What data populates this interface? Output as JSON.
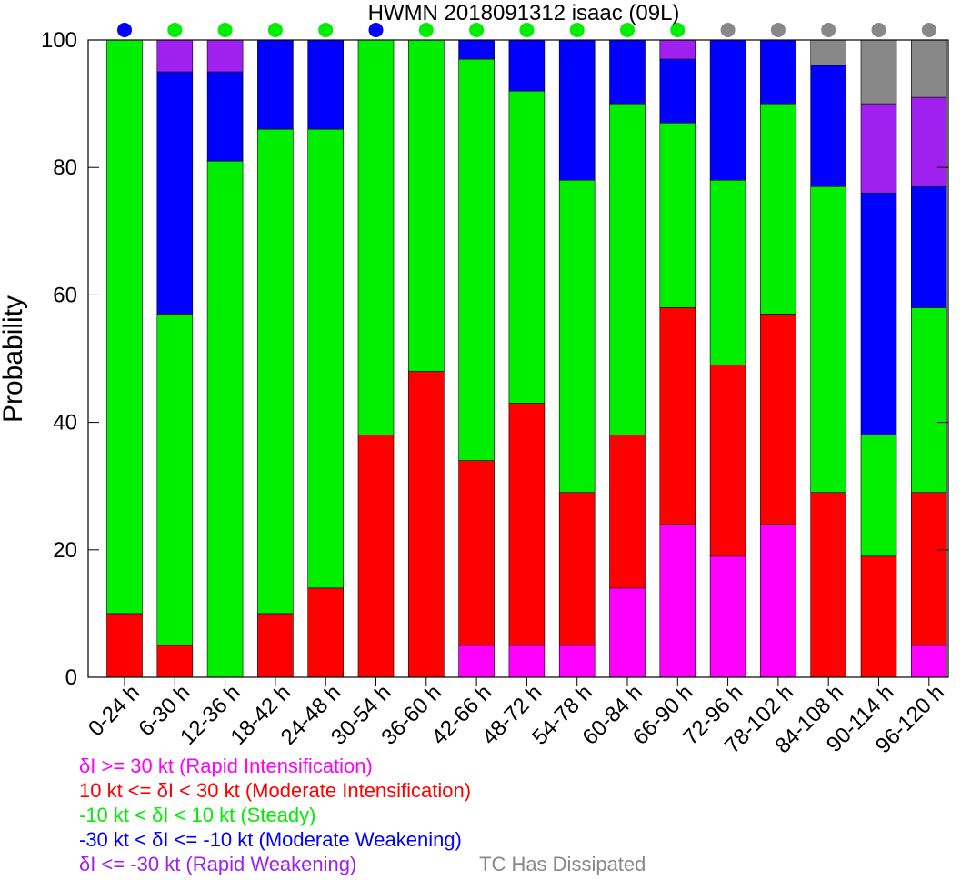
{
  "chart_data": {
    "type": "bar",
    "stacked": true,
    "title": "HWMN 2018091312 isaac (09L)",
    "ylabel": "Probability",
    "xlabel": "",
    "ylim": [
      0,
      100
    ],
    "yticks": [
      "0",
      "20",
      "40",
      "60",
      "80",
      "100"
    ],
    "categories": [
      "0-24 h",
      "6-30 h",
      "12-36 h",
      "18-42 h",
      "24-48 h",
      "30-54 h",
      "36-60 h",
      "42-66 h",
      "48-72 h",
      "54-78 h",
      "60-84 h",
      "66-90 h",
      "72-96 h",
      "78-102 h",
      "84-108 h",
      "90-114 h",
      "96-120 h"
    ],
    "series": [
      {
        "name": "δI >= 30 kt (Rapid Intensification)",
        "color": "#ff00ff",
        "values": [
          0,
          0,
          0,
          0,
          0,
          0,
          0,
          5,
          5,
          5,
          14,
          24,
          19,
          24,
          0,
          0,
          5
        ]
      },
      {
        "name": "10 kt <= δI < 30 kt (Moderate Intensification)",
        "color": "#ff0000",
        "values": [
          10,
          5,
          0,
          10,
          14,
          38,
          48,
          29,
          38,
          24,
          24,
          34,
          30,
          33,
          29,
          19,
          24
        ]
      },
      {
        "name": "-10 kt < δI < 10 kt (Steady)",
        "color": "#00ee00",
        "values": [
          90,
          52,
          81,
          76,
          72,
          62,
          52,
          63,
          49,
          49,
          52,
          29,
          29,
          33,
          48,
          19,
          29
        ]
      },
      {
        "name": "-30 kt < δI <= -10 kt (Moderate Weakening)",
        "color": "#0000ff",
        "values": [
          0,
          38,
          14,
          14,
          14,
          0,
          0,
          3,
          8,
          22,
          10,
          10,
          22,
          10,
          19,
          38,
          19
        ]
      },
      {
        "name": "δI <= -30 kt (Rapid Weakening)",
        "color": "#a020f0",
        "values": [
          0,
          5,
          5,
          0,
          0,
          0,
          0,
          0,
          0,
          0,
          0,
          3,
          0,
          0,
          0,
          14,
          14
        ]
      },
      {
        "name": "TC Has Dissipated",
        "color": "#888888",
        "values": [
          0,
          0,
          0,
          0,
          0,
          0,
          0,
          0,
          0,
          0,
          0,
          0,
          0,
          0,
          4,
          10,
          9
        ]
      }
    ],
    "top_markers": {
      "colors": [
        "#0000ff",
        "#00ee00",
        "#00ee00",
        "#00ee00",
        "#00ee00",
        "#0000ff",
        "#00ee00",
        "#00ee00",
        "#00ee00",
        "#00ee00",
        "#00ee00",
        "#00ee00",
        "#888888",
        "#888888",
        "#888888",
        "#888888",
        "#888888"
      ]
    },
    "legend_placement": "bottom-left",
    "grid": false
  }
}
